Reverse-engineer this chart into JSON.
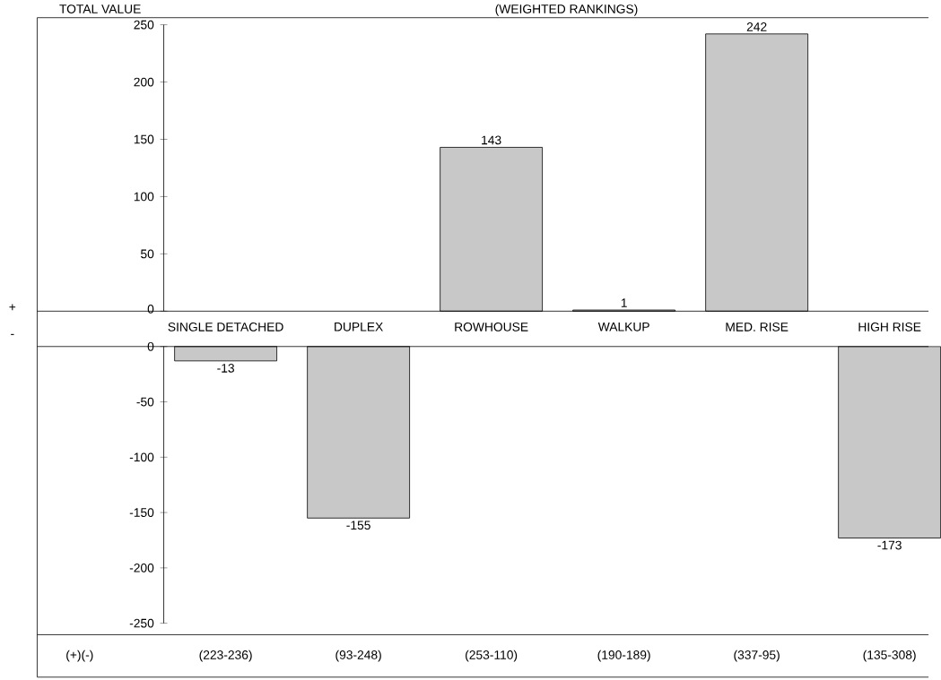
{
  "chart_data": [
    {
      "type": "bar",
      "title": "(WEIGHTED RANKINGS)",
      "ylabel": "TOTAL VALUE",
      "categories": [
        "SINGLE DETACHED",
        "DUPLEX",
        "ROWHOUSE",
        "WALKUP",
        "MED. RISE",
        "HIGH RISE"
      ],
      "values": [
        null,
        null,
        143,
        1,
        242,
        null
      ],
      "color": "#c8c8c8",
      "ylim": [
        0,
        250
      ],
      "yticks": [
        0,
        50,
        100,
        150,
        200,
        250
      ],
      "data_labels": true,
      "annotations": [
        "+"
      ]
    },
    {
      "type": "bar",
      "categories": [
        null,
        null,
        null,
        null,
        null,
        null
      ],
      "values": [
        -13,
        -155,
        null,
        null,
        null,
        -173
      ],
      "color": "#c8c8c8",
      "ylim": [
        -250,
        0
      ],
      "yticks": [
        -250,
        -200,
        -150,
        -100,
        -50,
        0
      ],
      "tick_labels": "y",
      "data_labels": true,
      "annotations": [
        "-",
        "(+)(-)",
        "(223-236)",
        "(93-248)",
        "(253-110)",
        "(190-189)",
        "(337-95)",
        "(135-308)"
      ]
    }
  ]
}
